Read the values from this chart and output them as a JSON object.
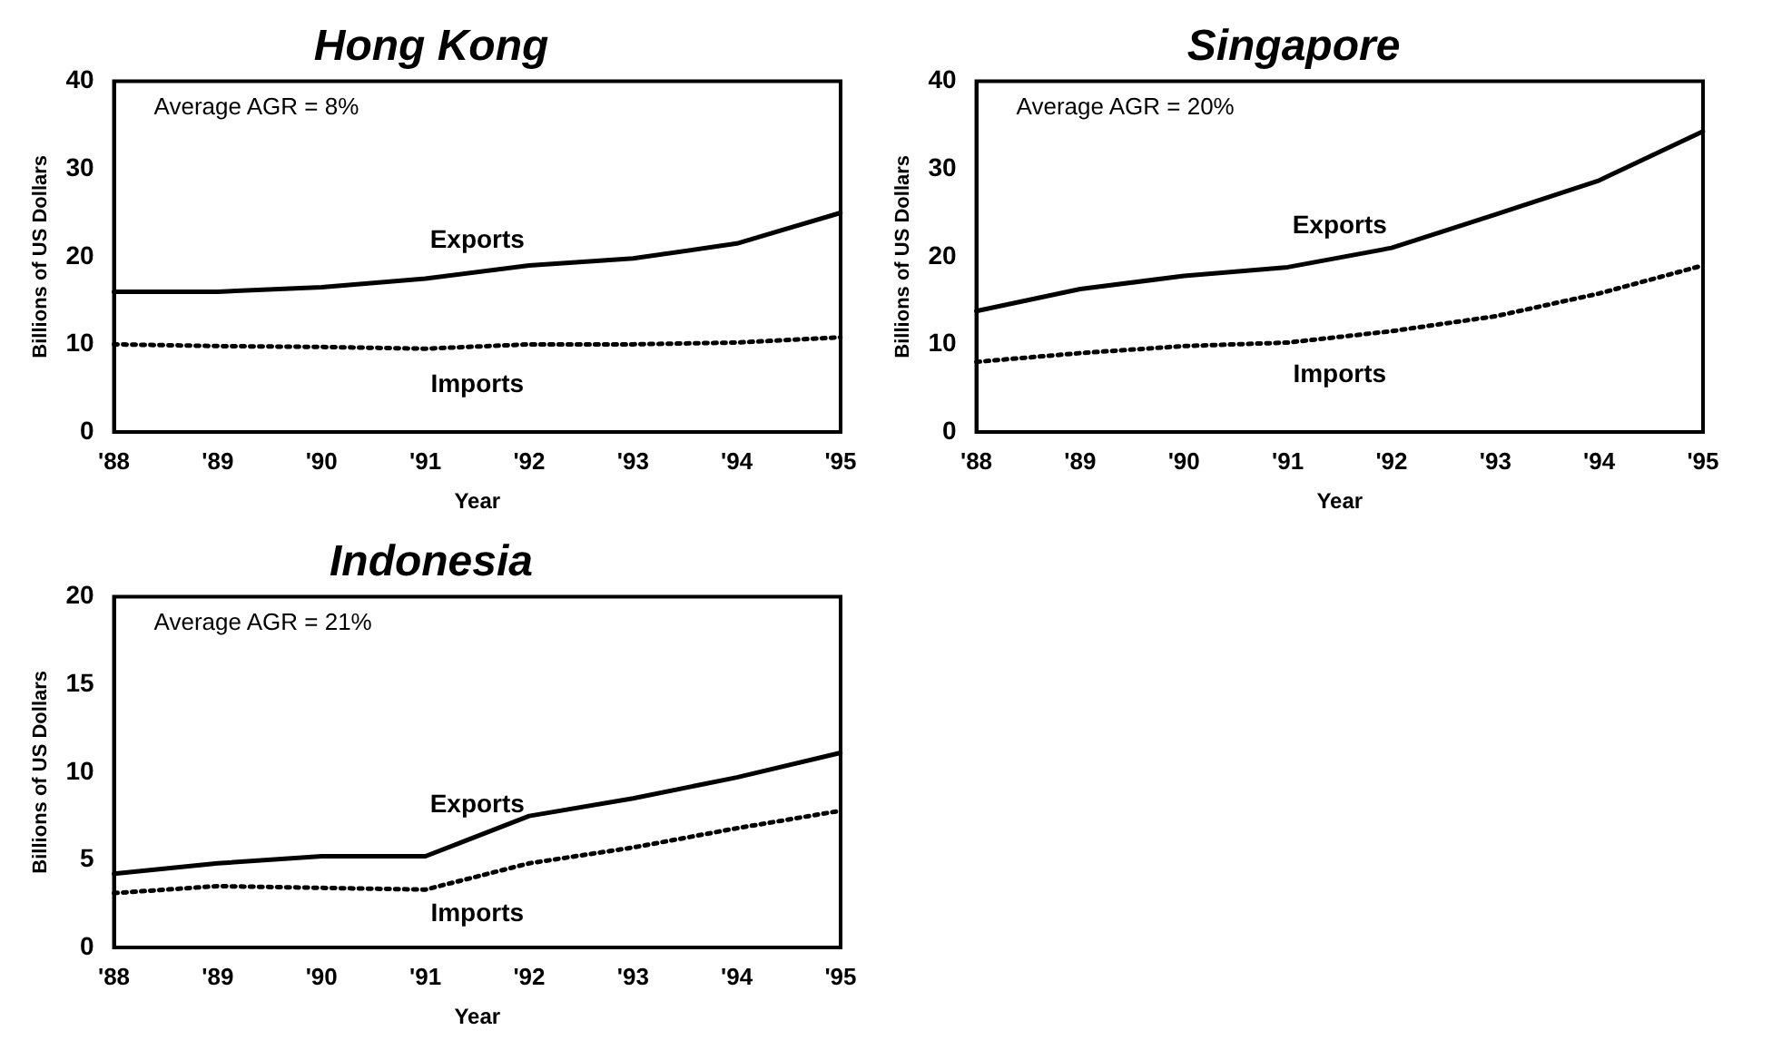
{
  "chart_data": [
    {
      "type": "line",
      "title": "Hong Kong",
      "xlabel": "Year",
      "ylabel": "Billions of US Dollars",
      "categories": [
        "'88",
        "'89",
        "'90",
        "'91",
        "'92",
        "'93",
        "'94",
        "'95"
      ],
      "series": [
        {
          "name": "Exports",
          "color": "#000000",
          "line_style": "solid",
          "values": [
            16,
            16,
            16.5,
            17.5,
            19,
            19.8,
            21.5,
            25
          ]
        },
        {
          "name": "Imports",
          "color": "#000000",
          "line_style": "dotted",
          "values": [
            10,
            9.8,
            9.7,
            9.5,
            10,
            10,
            10.2,
            10.8
          ]
        }
      ],
      "ylim": [
        0,
        40
      ],
      "yticks": [
        0,
        10,
        20,
        30,
        40
      ],
      "grid": false,
      "legend": false,
      "marker": "none",
      "annotations": [
        "Average AGR = 8%"
      ]
    },
    {
      "type": "line",
      "title": "Singapore",
      "xlabel": "Year",
      "ylabel": "Billions of US Dollars",
      "categories": [
        "'88",
        "'89",
        "'90",
        "'91",
        "'92",
        "'93",
        "'94",
        "'95"
      ],
      "series": [
        {
          "name": "Exports",
          "color": "#000000",
          "line_style": "solid",
          "values": [
            13.8,
            16.3,
            17.8,
            18.8,
            21,
            24.8,
            28.7,
            34.3
          ]
        },
        {
          "name": "Imports",
          "color": "#000000",
          "line_style": "dotted",
          "values": [
            8,
            9,
            9.8,
            10.2,
            11.5,
            13.2,
            15.8,
            19
          ]
        }
      ],
      "ylim": [
        0,
        40
      ],
      "yticks": [
        0,
        10,
        20,
        30,
        40
      ],
      "grid": false,
      "legend": false,
      "marker": "none",
      "annotations": [
        "Average AGR = 20%"
      ]
    },
    {
      "type": "line",
      "title": "Indonesia",
      "xlabel": "Year",
      "ylabel": "Billions of US Dollars",
      "categories": [
        "'88",
        "'89",
        "'90",
        "'91",
        "'92",
        "'93",
        "'94",
        "'95"
      ],
      "series": [
        {
          "name": "Exports",
          "color": "#000000",
          "line_style": "solid",
          "values": [
            4.2,
            4.8,
            5.2,
            5.2,
            7.5,
            8.5,
            9.7,
            11.1
          ]
        },
        {
          "name": "Imports",
          "color": "#000000",
          "line_style": "dotted",
          "values": [
            3.1,
            3.5,
            3.4,
            3.3,
            4.8,
            5.7,
            6.8,
            7.8
          ]
        }
      ],
      "ylim": [
        0,
        20
      ],
      "yticks": [
        0,
        5,
        10,
        15,
        20
      ],
      "grid": false,
      "legend": false,
      "marker": "none",
      "annotations": [
        "Average AGR = 21%"
      ]
    }
  ]
}
